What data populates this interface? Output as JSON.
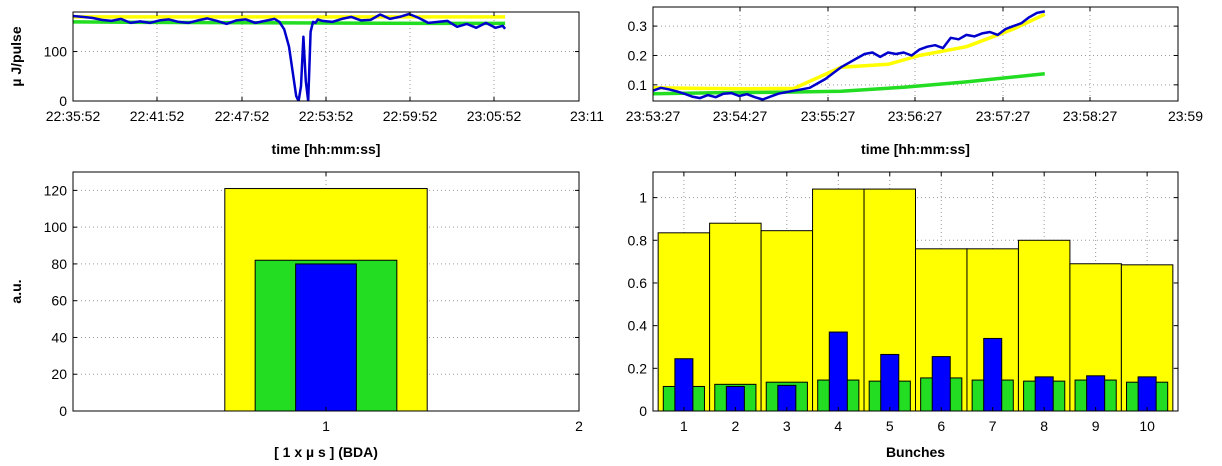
{
  "chart_data": [
    {
      "type": "line",
      "xlabel": "time [hh:mm:ss]",
      "ylabel": "µ J/pulse",
      "x_ticks": [
        "22:35:52",
        "22:41:52",
        "22:47:52",
        "22:53:52",
        "22:59:52",
        "23:05:52",
        "23:11"
      ],
      "y_ticks": [
        "0",
        "100"
      ],
      "xlim_seconds": [
        0,
        2108
      ],
      "ylim": [
        0,
        180
      ],
      "grid": true,
      "series": [
        {
          "color": "#0000cc",
          "x_seconds": [
            0,
            40,
            80,
            120,
            160,
            200,
            240,
            280,
            320,
            360,
            400,
            440,
            480,
            520,
            560,
            600,
            640,
            680,
            720,
            760,
            800,
            840,
            860,
            880,
            900,
            915,
            930,
            940,
            950,
            960,
            970,
            980,
            990,
            1000,
            1010,
            1020,
            1040,
            1080,
            1120,
            1160,
            1200,
            1240,
            1280,
            1320,
            1360,
            1400,
            1440,
            1480,
            1520,
            1560,
            1600,
            1640,
            1680,
            1720,
            1760,
            1790,
            1800
          ],
          "y": [
            172,
            170,
            168,
            164,
            162,
            166,
            158,
            161,
            158,
            163,
            165,
            160,
            158,
            163,
            167,
            162,
            156,
            163,
            165,
            158,
            162,
            166,
            160,
            145,
            110,
            60,
            10,
            0,
            30,
            130,
            40,
            0,
            140,
            160,
            158,
            165,
            162,
            160,
            166,
            170,
            163,
            164,
            175,
            166,
            170,
            176,
            168,
            158,
            160,
            162,
            150,
            156,
            148,
            158,
            148,
            152,
            146
          ]
        },
        {
          "color": "#ffff00",
          "x_seconds": [
            0,
            1800
          ],
          "y": [
            170,
            170
          ]
        },
        {
          "color": "#22dd22",
          "x_seconds": [
            0,
            300,
            900,
            1500,
            1800
          ],
          "y": [
            160,
            159,
            158,
            157,
            157
          ]
        }
      ]
    },
    {
      "type": "line",
      "xlabel": "time [hh:mm:ss]",
      "ylabel": "",
      "x_ticks": [
        "23:53:27",
        "23:54:27",
        "23:55:27",
        "23:56:27",
        "23:57:27",
        "23:58:27",
        "23:59"
      ],
      "y_ticks": [
        "0.1",
        "0.2",
        "0.3"
      ],
      "xlim_seconds": [
        0,
        335
      ],
      "ylim": [
        0.045,
        0.365
      ],
      "grid": true,
      "series": [
        {
          "color": "#0000cc",
          "x_seconds": [
            0,
            5,
            10,
            15,
            20,
            25,
            30,
            35,
            40,
            45,
            50,
            55,
            60,
            65,
            70,
            75,
            80,
            85,
            90,
            95,
            100,
            105,
            110,
            115,
            120,
            125,
            130,
            135,
            140,
            145,
            150,
            155,
            160,
            165,
            170,
            175,
            180,
            185,
            190,
            195,
            200,
            205,
            210,
            215,
            220,
            225,
            230,
            235,
            240,
            245,
            250
          ],
          "y": [
            0.08,
            0.09,
            0.085,
            0.078,
            0.07,
            0.06,
            0.055,
            0.065,
            0.058,
            0.07,
            0.072,
            0.062,
            0.068,
            0.058,
            0.05,
            0.06,
            0.07,
            0.075,
            0.08,
            0.085,
            0.09,
            0.105,
            0.12,
            0.14,
            0.16,
            0.175,
            0.19,
            0.205,
            0.21,
            0.195,
            0.21,
            0.205,
            0.21,
            0.2,
            0.22,
            0.23,
            0.235,
            0.225,
            0.26,
            0.255,
            0.27,
            0.265,
            0.275,
            0.28,
            0.27,
            0.29,
            0.3,
            0.31,
            0.33,
            0.345,
            0.35
          ]
        },
        {
          "color": "#ffff00",
          "x_seconds": [
            0,
            30,
            60,
            90,
            120,
            150,
            170,
            200,
            230,
            250
          ],
          "y": [
            0.09,
            0.088,
            0.087,
            0.088,
            0.16,
            0.17,
            0.2,
            0.23,
            0.29,
            0.34
          ]
        },
        {
          "color": "#22dd22",
          "x_seconds": [
            0,
            40,
            80,
            120,
            160,
            200,
            250
          ],
          "y": [
            0.07,
            0.073,
            0.075,
            0.078,
            0.092,
            0.11,
            0.138
          ]
        }
      ]
    },
    {
      "type": "bar",
      "xlabel": "[ 1 x µ s ] (BDA)",
      "ylabel": "a.u.",
      "x_ticks": [
        "1",
        "2"
      ],
      "y_ticks": [
        "0",
        "20",
        "40",
        "60",
        "80",
        "100",
        "120"
      ],
      "xlim": [
        0,
        2
      ],
      "ylim": [
        0,
        130
      ],
      "grid": true,
      "categories": [
        "1"
      ],
      "series": [
        {
          "color": "#ffff00",
          "values": [
            121
          ],
          "width": 0.8
        },
        {
          "color": "#22dd22",
          "values": [
            82
          ],
          "width": 0.56
        },
        {
          "color": "#0000ff",
          "values": [
            80
          ],
          "width": 0.24
        }
      ]
    },
    {
      "type": "bar",
      "xlabel": "Bunches",
      "ylabel": "",
      "x_ticks": [
        "1",
        "2",
        "3",
        "4",
        "5",
        "6",
        "7",
        "8",
        "9",
        "10"
      ],
      "y_ticks": [
        "0",
        "0.2",
        "0.4",
        "0.6",
        "0.8",
        "1"
      ],
      "xlim": [
        0.4,
        10.6
      ],
      "ylim": [
        0,
        1.12
      ],
      "grid": true,
      "categories": [
        "1",
        "2",
        "3",
        "4",
        "5",
        "6",
        "7",
        "8",
        "9",
        "10"
      ],
      "series": [
        {
          "color": "#ffff00",
          "values": [
            0.835,
            0.88,
            0.845,
            1.04,
            1.04,
            0.76,
            0.76,
            0.8,
            0.69,
            0.685
          ],
          "width": 1.0
        },
        {
          "color": "#22dd22",
          "values": [
            0.115,
            0.125,
            0.135,
            0.145,
            0.14,
            0.155,
            0.145,
            0.14,
            0.145,
            0.135
          ],
          "width": 0.8
        },
        {
          "color": "#0000ff",
          "values": [
            0.245,
            0.115,
            0.12,
            0.37,
            0.265,
            0.255,
            0.34,
            0.16,
            0.165,
            0.16
          ],
          "width": 0.35
        }
      ]
    }
  ]
}
